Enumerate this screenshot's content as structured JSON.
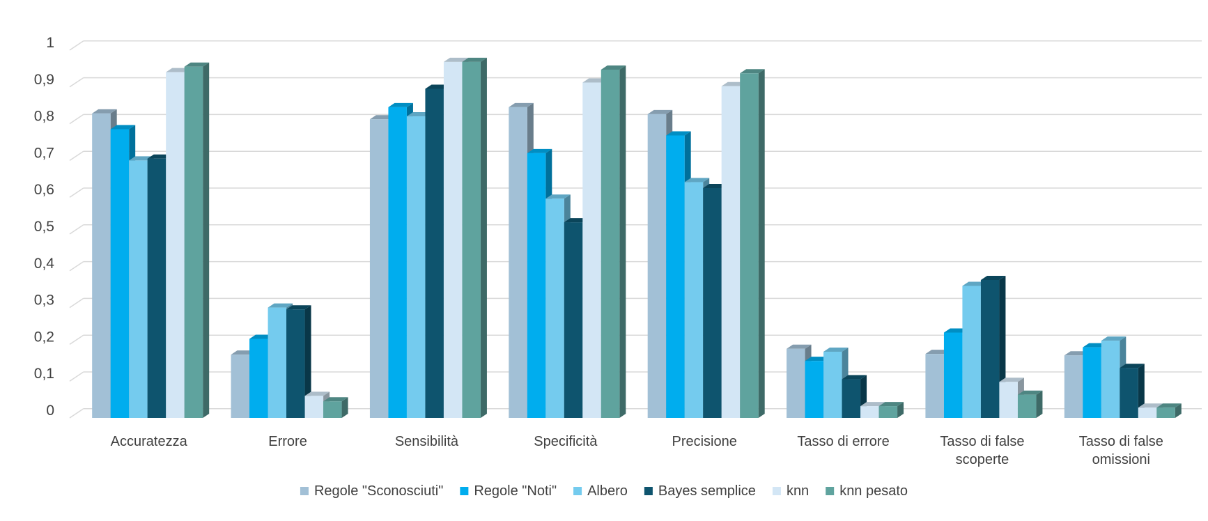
{
  "chart_data": {
    "type": "bar",
    "title": "",
    "xlabel": "",
    "ylabel": "",
    "ylim": [
      0,
      1
    ],
    "yticks": [
      "0",
      "0,1",
      "0,2",
      "0,3",
      "0,4",
      "0,5",
      "0,6",
      "0,7",
      "0,8",
      "0,9",
      "1"
    ],
    "grid": true,
    "legend_position": "bottom",
    "style": "3d-clustered-column",
    "categories": [
      [
        "Accuratezza"
      ],
      [
        "Errore"
      ],
      [
        "Sensibilità"
      ],
      [
        "Specificità"
      ],
      [
        "Precisione"
      ],
      [
        "Tasso di errore"
      ],
      [
        "Tasso di false",
        "scoperte"
      ],
      [
        "Tasso di false",
        "omissioni"
      ]
    ],
    "series": [
      {
        "name": "Regole \"Sconosciuti\"",
        "color": "#a2c0d6",
        "values": [
          0.828,
          0.172,
          0.812,
          0.845,
          0.826,
          0.188,
          0.174,
          0.17
        ]
      },
      {
        "name": "Regole \"Noti\"",
        "color": "#00adee",
        "values": [
          0.785,
          0.215,
          0.845,
          0.72,
          0.768,
          0.155,
          0.232,
          0.192
        ]
      },
      {
        "name": "Albero",
        "color": "#74cbee",
        "values": [
          0.7,
          0.3,
          0.82,
          0.596,
          0.641,
          0.18,
          0.359,
          0.21
        ]
      },
      {
        "name": "Bayes semplice",
        "color": "#0e546e",
        "values": [
          0.705,
          0.295,
          0.895,
          0.532,
          0.625,
          0.105,
          0.375,
          0.136
        ]
      },
      {
        "name": "knn",
        "color": "#d3e6f5",
        "values": [
          0.94,
          0.06,
          0.968,
          0.912,
          0.902,
          0.032,
          0.098,
          0.028
        ]
      },
      {
        "name": "knn pesato",
        "color": "#5fa39e",
        "values": [
          0.955,
          0.045,
          0.968,
          0.947,
          0.937,
          0.032,
          0.063,
          0.028
        ]
      }
    ]
  }
}
